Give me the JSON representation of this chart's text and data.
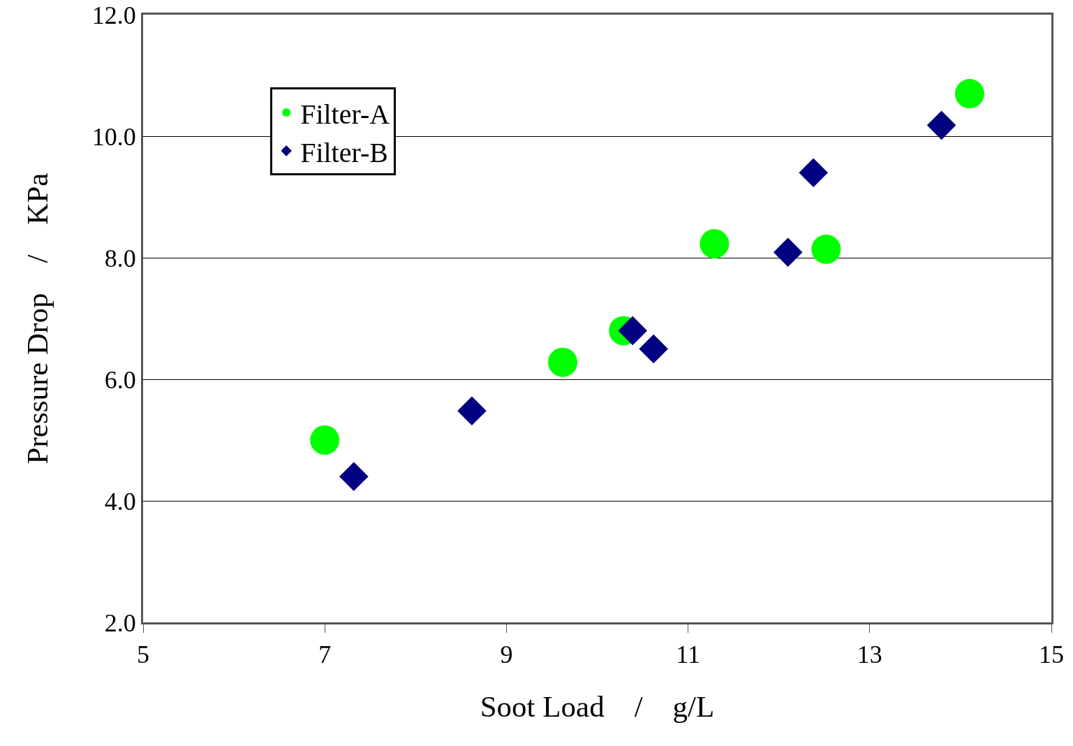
{
  "chart_data": {
    "type": "scatter",
    "xlabel": "Soot Load　/　g/L",
    "ylabel": "Pressure Drop　/　KPa",
    "xlim": [
      5,
      15
    ],
    "xticks": [
      5,
      7,
      9,
      11,
      13,
      15
    ],
    "ylim": [
      2,
      12
    ],
    "yticks": [
      {
        "value": 2,
        "label": "2.0"
      },
      {
        "value": 4,
        "label": "4.0"
      },
      {
        "value": 6,
        "label": "6.0"
      },
      {
        "value": 8,
        "label": "8.0"
      },
      {
        "value": 10,
        "label": "10.0"
      },
      {
        "value": 12,
        "label": "12.0"
      }
    ],
    "grid": "y",
    "legend": "top left",
    "series": [
      {
        "name": "Filter-A",
        "color": "#00ff00",
        "marker": "circle",
        "x": [
          7.0,
          9.62,
          10.29,
          11.29,
          12.52,
          14.1
        ],
        "values": [
          5.0,
          6.28,
          6.8,
          8.23,
          8.14,
          10.7
        ]
      },
      {
        "name": "Filter-B",
        "color": "#000080",
        "marker": "diamond",
        "x": [
          7.32,
          8.62,
          10.39,
          10.62,
          12.1,
          12.38,
          13.79
        ],
        "values": [
          4.4,
          5.48,
          6.8,
          6.5,
          8.09,
          9.4,
          10.18
        ]
      }
    ]
  }
}
